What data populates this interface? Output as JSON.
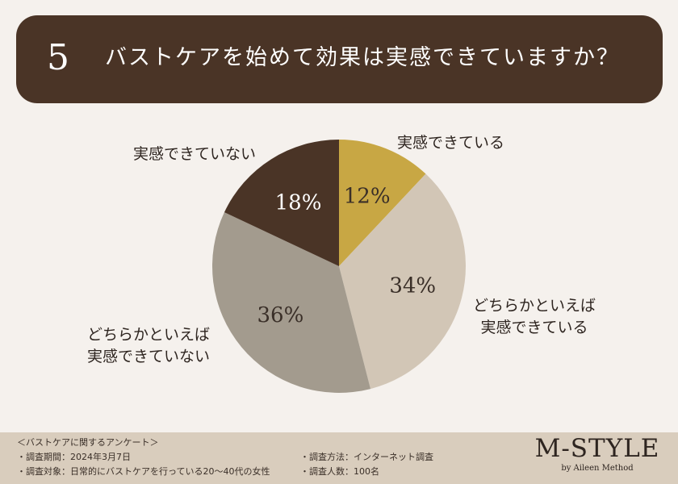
{
  "header": {
    "number": "5",
    "question": "バストケアを始めて効果は実感できていますか？"
  },
  "chart_data": {
    "type": "pie",
    "title": "",
    "start": "top",
    "direction": "clockwise",
    "slices": [
      {
        "label": "実感できている",
        "value": 12,
        "value_label": "12%",
        "color": "#c8a744"
      },
      {
        "label": "どちらかといえば実感できている",
        "value": 34,
        "value_label": "34%",
        "color": "#d2c6b6"
      },
      {
        "label": "どちらかといえば実感できていない",
        "value": 36,
        "value_label": "36%",
        "color": "#a39b8e"
      },
      {
        "label": "実感できていない",
        "value": 18,
        "value_label": "18%",
        "color": "#4a3426"
      }
    ],
    "outer_labels": {
      "s0": "実感できている",
      "s1a": "どちらかといえば",
      "s1b": "実感できている",
      "s2a": "どちらかといえば",
      "s2b": "実感できていない",
      "s3": "実感できていない"
    }
  },
  "footer": {
    "heading": "＜バストケアに関するアンケート＞",
    "period": "・調査期間：2024年3月7日",
    "target": "・調査対象：日常的にバストケアを行っている20〜40代の女性",
    "method": "・調査方法：インターネット調査",
    "count": "・調査人数：100名"
  },
  "brand": {
    "name": "M-STYLE",
    "sub": "by Aileen Method"
  }
}
